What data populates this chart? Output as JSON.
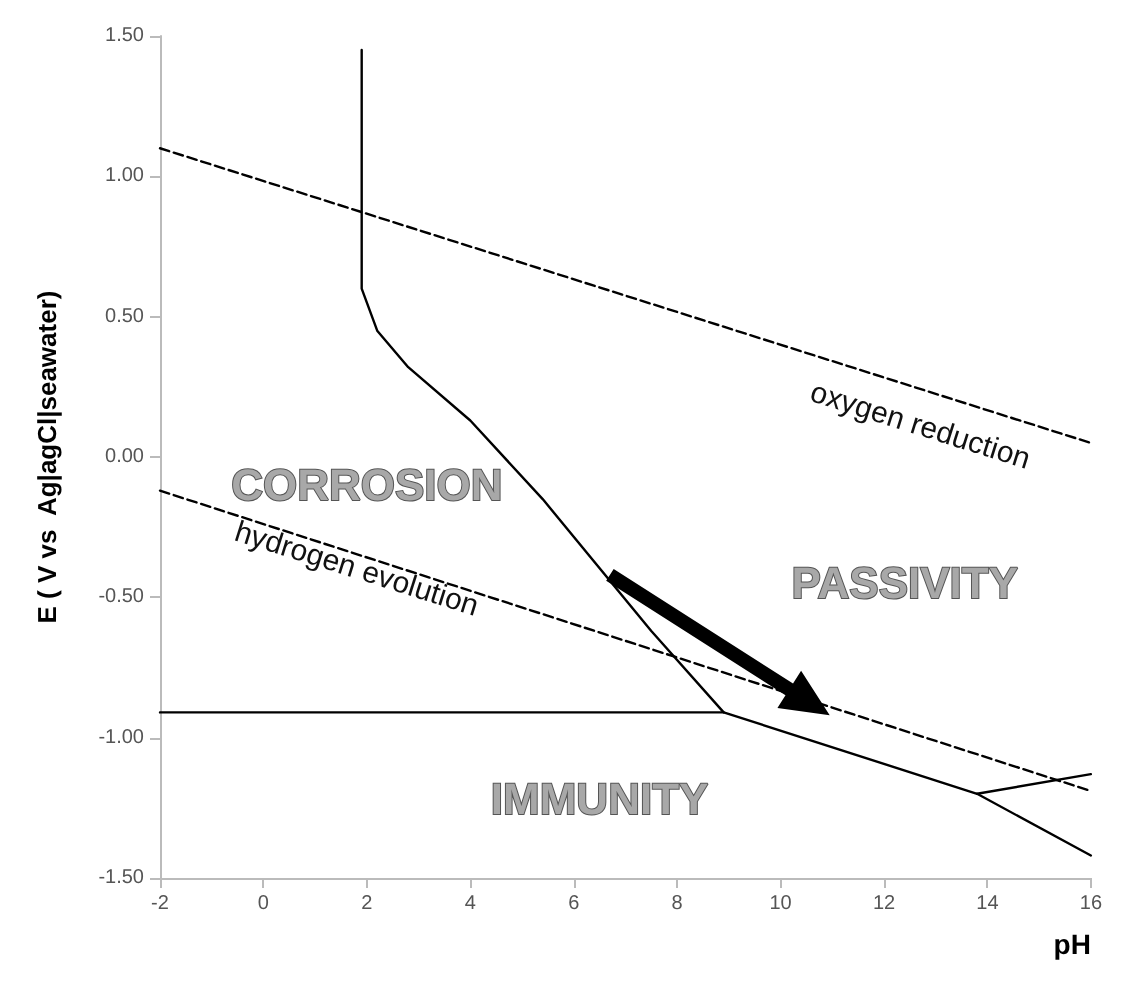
{
  "chart_data": {
    "type": "line",
    "xlabel": "pH",
    "ylabel": "E ( V vs  Ag|agCl|seawater)",
    "xlim": [
      -2,
      16
    ],
    "xticks": [
      -2,
      0,
      2,
      4,
      6,
      8,
      10,
      12,
      14,
      16
    ],
    "ylim": [
      -1.5,
      1.5
    ],
    "yticks": [
      {
        "value": 1.5,
        "label": "1.50"
      },
      {
        "value": 1.0,
        "label": "1.00"
      },
      {
        "value": 0.5,
        "label": "0.50"
      },
      {
        "value": 0,
        "label": "0.00"
      },
      {
        "value": -0.5,
        "label": "-0.50"
      },
      {
        "value": -1.0,
        "label": "-1.00"
      },
      {
        "value": -1.5,
        "label": "-1.50"
      }
    ],
    "grid": false,
    "marker": "none",
    "series": [
      {
        "color": "#000000",
        "line_style": "dashed",
        "x": [
          -2,
          16
        ],
        "values": [
          1.1,
          0.05
        ]
      },
      {
        "color": "#000000",
        "line_style": "dashed",
        "x": [
          -2,
          16
        ],
        "values": [
          -0.12,
          -1.19
        ]
      },
      {
        "color": "#000000",
        "line_style": "solid",
        "x": [
          1.9,
          1.9,
          2.2,
          2.8,
          4.0,
          5.4,
          7.5,
          8.9
        ],
        "values": [
          1.45,
          0.6,
          0.45,
          0.32,
          0.13,
          -0.15,
          -0.62,
          -0.91
        ]
      },
      {
        "color": "#000000",
        "line_style": "solid",
        "x": [
          -2,
          8.9,
          13.8,
          16
        ],
        "values": [
          -0.91,
          -0.91,
          -1.2,
          -1.42
        ]
      },
      {
        "color": "#000000",
        "line_style": "solid",
        "x": [
          13.8,
          16
        ],
        "values": [
          -1.2,
          -1.13
        ]
      }
    ],
    "annotations": [
      "CORROSION",
      "PASSIVITY",
      "IMMUNITY",
      "oxygen reduction",
      "hydrogen evolution"
    ]
  }
}
